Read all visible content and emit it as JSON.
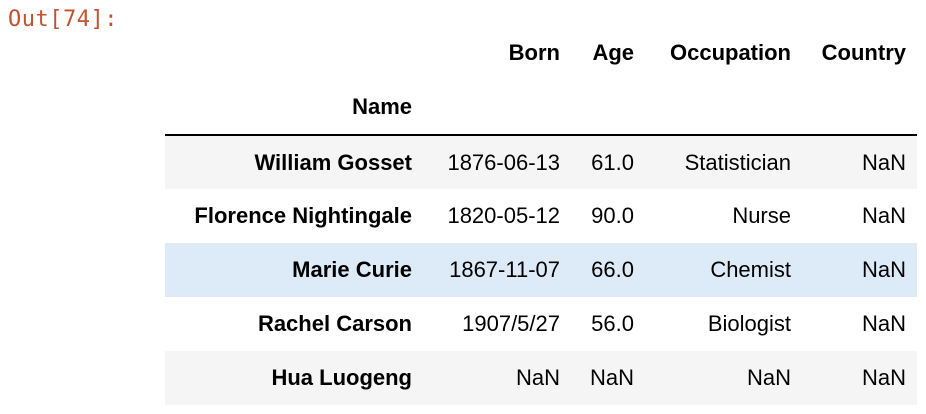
{
  "prompt": "Out[74]:",
  "columns": [
    "Born",
    "Age",
    "Occupation",
    "Country"
  ],
  "index_name": "Name",
  "rows": [
    {
      "name": "William Gosset",
      "born": "1876-06-13",
      "age": "61.0",
      "occupation": "Statistician",
      "country": "NaN"
    },
    {
      "name": "Florence Nightingale",
      "born": "1820-05-12",
      "age": "90.0",
      "occupation": "Nurse",
      "country": "NaN"
    },
    {
      "name": "Marie Curie",
      "born": "1867-11-07",
      "age": "66.0",
      "occupation": "Chemist",
      "country": "NaN"
    },
    {
      "name": "Rachel Carson",
      "born": "1907/5/27",
      "age": "56.0",
      "occupation": "Biologist",
      "country": "NaN"
    },
    {
      "name": "Hua Luogeng",
      "born": "NaN",
      "age": "NaN",
      "occupation": "NaN",
      "country": "NaN"
    }
  ],
  "colors": {
    "prompt": "#c0532f",
    "striped_row": "#f5f5f5",
    "hover_row": "#ddebf8"
  }
}
